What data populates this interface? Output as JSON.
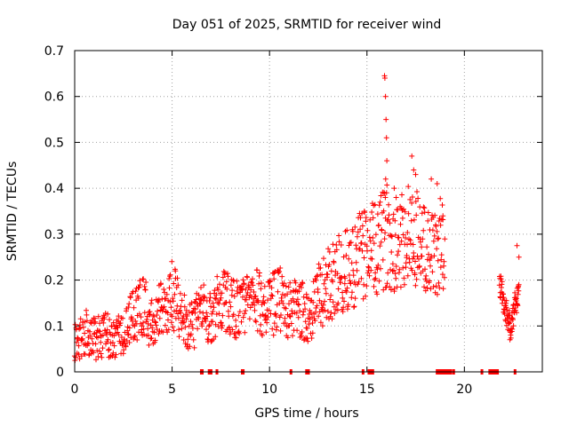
{
  "chart_data": {
    "type": "scatter",
    "title": "Day 051 of 2025, SRMTID for receiver wind",
    "xlabel": "GPS time / hours",
    "ylabel": "SRMTID / TECUs",
    "xlim": [
      0,
      24
    ],
    "ylim": [
      0,
      0.7
    ],
    "xticks": [
      0,
      5,
      10,
      15,
      20
    ],
    "yticks": [
      0,
      0.1,
      0.2,
      0.3,
      0.4,
      0.5,
      0.6,
      0.7
    ],
    "ytick_labels": [
      "0",
      "0.1",
      "0.2",
      "0.3",
      "0.4",
      "0.5",
      "0.6",
      "0.7"
    ],
    "grid": true,
    "marker": "+",
    "color": "#ff0000",
    "trend": {
      "x": [
        0,
        0.5,
        1,
        1.5,
        2,
        2.5,
        3,
        3.5,
        4,
        4.5,
        5,
        5.5,
        6,
        6.5,
        7,
        7.5,
        8,
        8.5,
        9,
        9.5,
        10,
        10.5,
        11,
        11.5,
        12,
        12.5,
        13,
        13.5,
        14,
        14.5,
        15,
        15.5,
        16,
        16.5,
        17,
        17.5,
        18,
        18.5,
        19
      ],
      "y": [
        0.06,
        0.09,
        0.07,
        0.08,
        0.075,
        0.09,
        0.12,
        0.15,
        0.1,
        0.14,
        0.17,
        0.12,
        0.1,
        0.13,
        0.12,
        0.16,
        0.15,
        0.13,
        0.16,
        0.15,
        0.14,
        0.16,
        0.13,
        0.14,
        0.12,
        0.16,
        0.19,
        0.21,
        0.22,
        0.24,
        0.27,
        0.26,
        0.3,
        0.28,
        0.3,
        0.3,
        0.26,
        0.25,
        0.3
      ]
    },
    "trend2": {
      "x": [
        21.8,
        22.0,
        22.2,
        22.4,
        22.6,
        22.8
      ],
      "y": [
        0.2,
        0.16,
        0.12,
        0.09,
        0.15,
        0.17
      ]
    },
    "outliers": {
      "x": [
        15.9,
        15.92,
        15.95,
        15.98,
        16.0,
        16.02,
        15.96,
        15.94,
        17.3,
        17.4,
        17.5,
        16.4,
        16.5,
        18.3,
        18.6,
        18.9,
        22.7,
        22.8
      ],
      "y": [
        0.645,
        0.64,
        0.6,
        0.55,
        0.51,
        0.46,
        0.42,
        0.38,
        0.47,
        0.44,
        0.43,
        0.4,
        0.38,
        0.42,
        0.41,
        0.34,
        0.275,
        0.25
      ]
    },
    "gaps": [
      [
        19.2,
        21.5
      ]
    ],
    "missing_marks_x": [
      6.5,
      6.55,
      6.9,
      7.0,
      7.3,
      8.6,
      8.65,
      11.1,
      11.9,
      12.0,
      14.8,
      15.1,
      15.15,
      15.2,
      15.3,
      18.6,
      18.7,
      18.8,
      18.9,
      19.0,
      19.1,
      19.2,
      19.3,
      19.45,
      20.9,
      21.3,
      21.35,
      21.4,
      21.5,
      21.6,
      21.7,
      22.6
    ]
  }
}
